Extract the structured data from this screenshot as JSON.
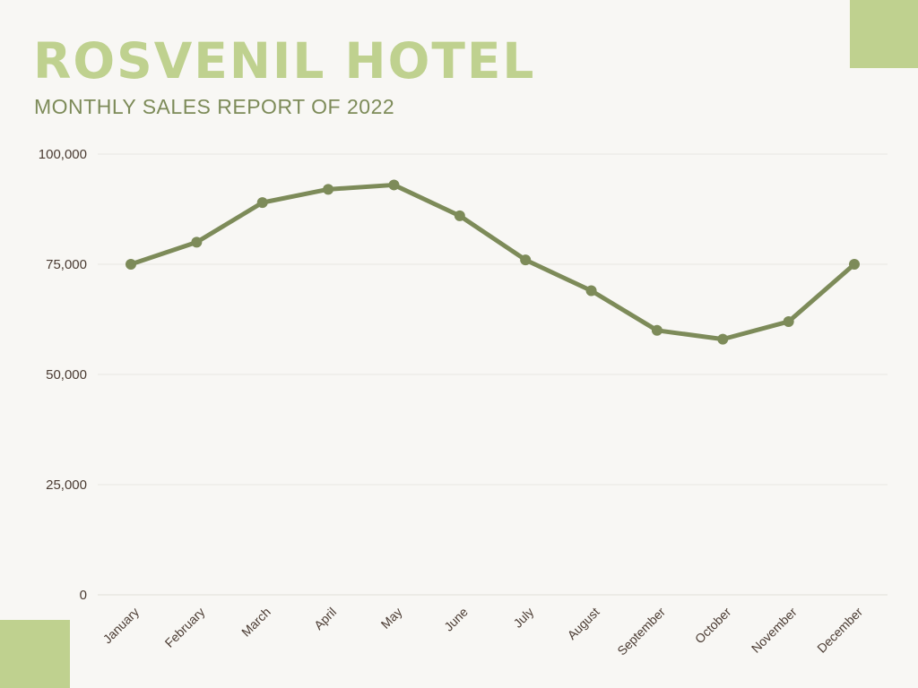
{
  "header": {
    "title": "ROSVENIL HOTEL",
    "subtitle": "MONTHLY SALES REPORT OF 2022"
  },
  "colors": {
    "accent": "#bfd18f",
    "title": "#bfd18f",
    "subtitle": "#7d8b59",
    "line": "#7d8b59",
    "grid": "#e8e7e2",
    "tick_text": "#4a3b32",
    "background": "#f8f7f4"
  },
  "chart_data": {
    "type": "line",
    "title": "",
    "xlabel": "",
    "ylabel": "",
    "categories": [
      "January",
      "February",
      "March",
      "April",
      "May",
      "June",
      "July",
      "August",
      "September",
      "October",
      "November",
      "December"
    ],
    "series": [
      {
        "values": [
          75000,
          80000,
          89000,
          92000,
          93000,
          86000,
          76000,
          69000,
          60000,
          58000,
          62000,
          75000
        ]
      }
    ],
    "ylim": [
      0,
      100000
    ],
    "yticks": [
      0,
      25000,
      50000,
      75000,
      100000
    ],
    "ytick_labels": [
      "0",
      "25,000",
      "50,000",
      "75,000",
      "100,000"
    ],
    "grid": true,
    "legend": "none"
  }
}
